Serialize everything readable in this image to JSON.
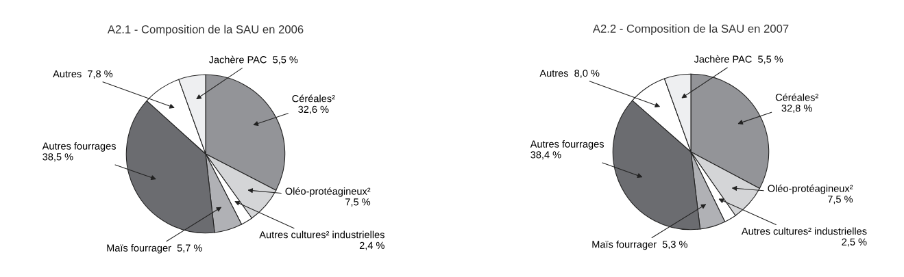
{
  "chart_data": [
    {
      "type": "pie",
      "title": "A2.1 - Composition de la SAU en 2006",
      "categories": [
        "Céréales²",
        "Oléo-protéagineux²",
        "Autres cultures² industrielles",
        "Maïs fourrager",
        "Autres fourrages",
        "Autres",
        "Jachère PAC"
      ],
      "values": [
        32.6,
        7.5,
        2.4,
        5.7,
        38.5,
        7.8,
        5.5
      ],
      "value_labels": [
        "32,6 %",
        "7,5 %",
        "2,4 %",
        "5,7 %",
        "38,5 %",
        "7,8 %",
        "5,5 %"
      ],
      "colors": [
        "#939498",
        "#d4d5d7",
        "#ffffff",
        "#b0b1b5",
        "#6b6c70",
        "#ffffff",
        "#eeeff1"
      ]
    },
    {
      "type": "pie",
      "title": "A2.2 - Composition de la SAU en 2007",
      "categories": [
        "Céréales²",
        "Oléo-protéagineux²",
        "Autres cultures² industrielles",
        "Maïs fourrager",
        "Autres fourrages",
        "Autres",
        "Jachère PAC"
      ],
      "values": [
        32.8,
        7.5,
        2.5,
        5.3,
        38.4,
        8.0,
        5.5
      ],
      "value_labels": [
        "32,8 %",
        "7,5 %",
        "2,5 %",
        "5,3 %",
        "38,4 %",
        "8,0 %",
        "5,5 %"
      ],
      "colors": [
        "#939498",
        "#d4d5d7",
        "#ffffff",
        "#b0b1b5",
        "#6b6c70",
        "#ffffff",
        "#eeeff1"
      ]
    }
  ]
}
